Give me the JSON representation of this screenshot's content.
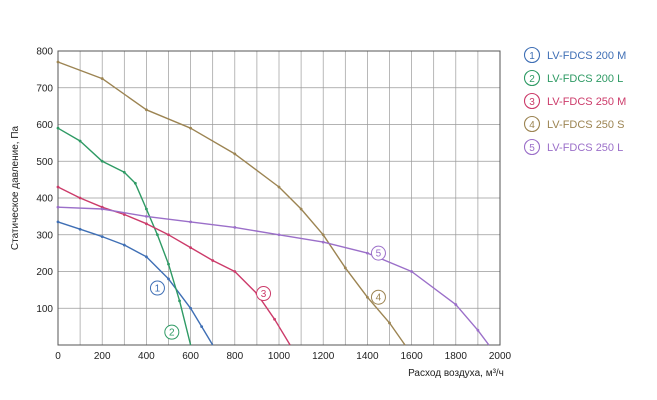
{
  "chart_data": {
    "type": "line",
    "xlabel": "Расход воздуха, м³/ч",
    "ylabel": "Статическое давление, Па",
    "xlim": [
      0,
      2000
    ],
    "ylim": [
      0,
      800
    ],
    "xticks": [
      "0",
      "200",
      "400",
      "600",
      "800",
      "1000",
      "1200",
      "1400",
      "1600",
      "1800",
      "2000"
    ],
    "yticks": [
      "100",
      "200",
      "300",
      "400",
      "500",
      "600",
      "700",
      "800"
    ],
    "grid": true,
    "legend_position": "right",
    "series": [
      {
        "id": "1",
        "name": "LV-FDCS 200 M",
        "color": "#3f6fb5",
        "label_at": [
          450,
          155
        ],
        "points": [
          [
            0,
            335
          ],
          [
            100,
            315
          ],
          [
            200,
            295
          ],
          [
            300,
            272
          ],
          [
            400,
            240
          ],
          [
            500,
            180
          ],
          [
            600,
            100
          ],
          [
            650,
            50
          ],
          [
            700,
            0
          ]
        ]
      },
      {
        "id": "2",
        "name": "LV-FDCS 200 L",
        "color": "#2e9a64",
        "label_at": [
          515,
          35
        ],
        "points": [
          [
            0,
            590
          ],
          [
            100,
            555
          ],
          [
            200,
            500
          ],
          [
            300,
            470
          ],
          [
            350,
            440
          ],
          [
            400,
            370
          ],
          [
            450,
            300
          ],
          [
            500,
            220
          ],
          [
            550,
            120
          ],
          [
            600,
            0
          ]
        ]
      },
      {
        "id": "3",
        "name": "LV-FDCS 250 M",
        "color": "#cc3b6a",
        "label_at": [
          930,
          140
        ],
        "points": [
          [
            0,
            430
          ],
          [
            100,
            400
          ],
          [
            200,
            375
          ],
          [
            300,
            355
          ],
          [
            400,
            330
          ],
          [
            500,
            300
          ],
          [
            600,
            265
          ],
          [
            700,
            230
          ],
          [
            800,
            200
          ],
          [
            900,
            140
          ],
          [
            980,
            70
          ],
          [
            1050,
            0
          ]
        ]
      },
      {
        "id": "4",
        "name": "LV-FDCS 250 S",
        "color": "#9c8452",
        "label_at": [
          1450,
          130
        ],
        "points": [
          [
            0,
            770
          ],
          [
            200,
            725
          ],
          [
            400,
            640
          ],
          [
            600,
            590
          ],
          [
            800,
            520
          ],
          [
            1000,
            430
          ],
          [
            1100,
            370
          ],
          [
            1200,
            300
          ],
          [
            1300,
            210
          ],
          [
            1400,
            130
          ],
          [
            1500,
            60
          ],
          [
            1570,
            0
          ]
        ]
      },
      {
        "id": "5",
        "name": "LV-FDCS 250 L",
        "color": "#9b6fc9",
        "label_at": [
          1450,
          250
        ],
        "points": [
          [
            0,
            375
          ],
          [
            200,
            370
          ],
          [
            400,
            350
          ],
          [
            600,
            335
          ],
          [
            800,
            320
          ],
          [
            1000,
            300
          ],
          [
            1200,
            280
          ],
          [
            1400,
            250
          ],
          [
            1600,
            200
          ],
          [
            1800,
            110
          ],
          [
            1900,
            40
          ],
          [
            1950,
            0
          ]
        ]
      }
    ]
  }
}
